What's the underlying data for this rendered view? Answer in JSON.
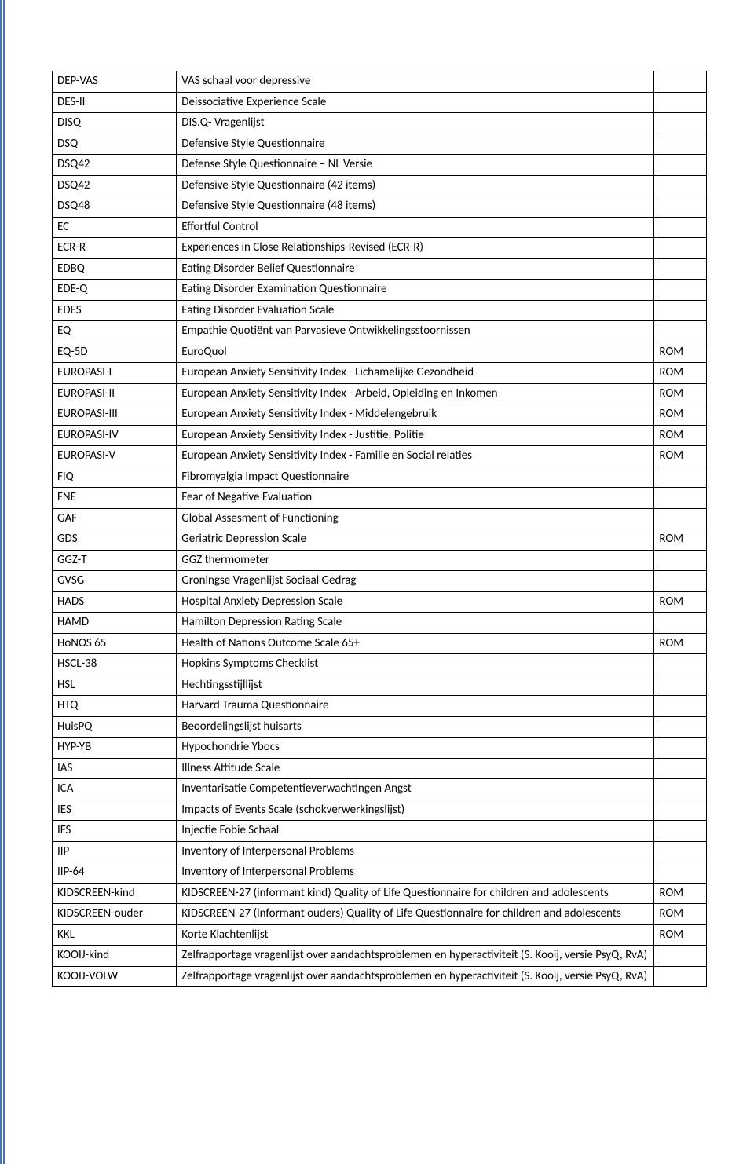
{
  "table": {
    "columns": [
      "abbr",
      "desc",
      "tag"
    ],
    "col_widths_pct": [
      19,
      73,
      8
    ],
    "border_color": "#000000",
    "font_size_pt": 11,
    "rows": [
      {
        "abbr": "DEP-VAS",
        "desc": "VAS schaal voor depressive",
        "tag": ""
      },
      {
        "abbr": "DES-II",
        "desc": "Deissociative Experience Scale",
        "tag": ""
      },
      {
        "abbr": "DISQ",
        "desc": "DIS.Q- Vragenlijst",
        "tag": ""
      },
      {
        "abbr": "DSQ",
        "desc": "Defensive Style Questionnaire",
        "tag": ""
      },
      {
        "abbr": "DSQ42",
        "desc": "Defense Style Questionnaire – NL Versie",
        "tag": ""
      },
      {
        "abbr": "DSQ42",
        "desc": "Defensive Style Questionnaire (42 items)",
        "tag": ""
      },
      {
        "abbr": "DSQ48",
        "desc": "Defensive Style Questionnaire (48 items)",
        "tag": ""
      },
      {
        "abbr": "EC",
        "desc": "Effortful Control",
        "tag": ""
      },
      {
        "abbr": "ECR-R",
        "desc": "Experiences in Close Relationships-Revised (ECR-R)",
        "tag": ""
      },
      {
        "abbr": "EDBQ",
        "desc": "Eating Disorder Belief Questionnaire",
        "tag": ""
      },
      {
        "abbr": "EDE-Q",
        "desc": "Eating Disorder Examination Questionnaire",
        "tag": ""
      },
      {
        "abbr": "EDES",
        "desc": "Eating Disorder Evaluation Scale",
        "tag": ""
      },
      {
        "abbr": "EQ",
        "desc": "Empathie Quotiënt van Parvasieve Ontwikkelingsstoornissen",
        "tag": ""
      },
      {
        "abbr": "EQ-5D",
        "desc": "EuroQuol",
        "tag": "ROM"
      },
      {
        "abbr": "EUROPASI-I",
        "desc": "European Anxiety Sensitivity Index - Lichamelijke Gezondheid",
        "tag": "ROM"
      },
      {
        "abbr": "EUROPASI-II",
        "desc": "European Anxiety Sensitivity Index - Arbeid, Opleiding en Inkomen",
        "tag": "ROM"
      },
      {
        "abbr": "EUROPASI-III",
        "desc": "European Anxiety Sensitivity Index - Middelengebruik",
        "tag": "ROM"
      },
      {
        "abbr": "EUROPASI-IV",
        "desc": "European Anxiety Sensitivity Index - Justitie, Politie",
        "tag": "ROM"
      },
      {
        "abbr": "EUROPASI-V",
        "desc": "European Anxiety Sensitivity Index - Familie en Social relaties",
        "tag": "ROM"
      },
      {
        "abbr": "FIQ",
        "desc": "Fibromyalgia Impact Questionnaire",
        "tag": ""
      },
      {
        "abbr": "FNE",
        "desc": "Fear of Negative Evaluation",
        "tag": ""
      },
      {
        "abbr": "GAF",
        "desc": "Global Assesment of Functioning",
        "tag": ""
      },
      {
        "abbr": "GDS",
        "desc": "Geriatric Depression Scale",
        "tag": "ROM"
      },
      {
        "abbr": "GGZ-T",
        "desc": "GGZ thermometer",
        "tag": ""
      },
      {
        "abbr": "GVSG",
        "desc": "Groningse Vragenlijst Sociaal Gedrag",
        "tag": ""
      },
      {
        "abbr": "HADS",
        "desc": "Hospital Anxiety Depression Scale",
        "tag": "ROM"
      },
      {
        "abbr": "HAMD",
        "desc": "Hamilton Depression Rating Scale",
        "tag": ""
      },
      {
        "abbr": "HoNOS 65",
        "desc": "Health of Nations Outcome Scale 65+",
        "tag": "ROM"
      },
      {
        "abbr": "HSCL-38",
        "desc": "Hopkins Symptoms Checklist",
        "tag": ""
      },
      {
        "abbr": "HSL",
        "desc": "Hechtingsstijllijst",
        "tag": ""
      },
      {
        "abbr": "HTQ",
        "desc": "Harvard Trauma Questionnaire",
        "tag": ""
      },
      {
        "abbr": "HuisPQ",
        "desc": "Beoordelingslijst huisarts",
        "tag": ""
      },
      {
        "abbr": "HYP-YB",
        "desc": "Hypochondrie Ybocs",
        "tag": ""
      },
      {
        "abbr": "IAS",
        "desc": "Illness Attitude Scale",
        "tag": ""
      },
      {
        "abbr": "ICA",
        "desc": "Inventarisatie Competentieverwachtingen Angst",
        "tag": ""
      },
      {
        "abbr": "IES",
        "desc": "Impacts of Events Scale (schokverwerkingslijst)",
        "tag": ""
      },
      {
        "abbr": "IFS",
        "desc": "Injectie Fobie Schaal",
        "tag": ""
      },
      {
        "abbr": "IIP",
        "desc": "Inventory of Interpersonal Problems",
        "tag": ""
      },
      {
        "abbr": "IIP-64",
        "desc": "Inventory of Interpersonal Problems",
        "tag": ""
      },
      {
        "abbr": "KIDSCREEN-kind",
        "desc": "KIDSCREEN-27 (informant kind) Quality of Life Questionnaire for children and adolescents",
        "tag": "ROM"
      },
      {
        "abbr": "KIDSCREEN-ouder",
        "desc": "KIDSCREEN-27 (informant ouders) Quality of Life Questionnaire for children and adolescents",
        "tag": "ROM"
      },
      {
        "abbr": "KKL",
        "desc": "Korte Klachtenlijst",
        "tag": "ROM"
      },
      {
        "abbr": "KOOIJ-kind",
        "desc": "Zelfrapportage vragenlijst over aandachtsproblemen en hyperactiviteit (S. Kooij, versie PsyQ, RvA)",
        "tag": ""
      },
      {
        "abbr": "KOOIJ-VOLW",
        "desc": "Zelfrapportage vragenlijst over aandachtsproblemen en hyperactiviteit (S. Kooij, versie PsyQ, RvA)",
        "tag": ""
      }
    ]
  },
  "page_border_color": "#4472c4"
}
